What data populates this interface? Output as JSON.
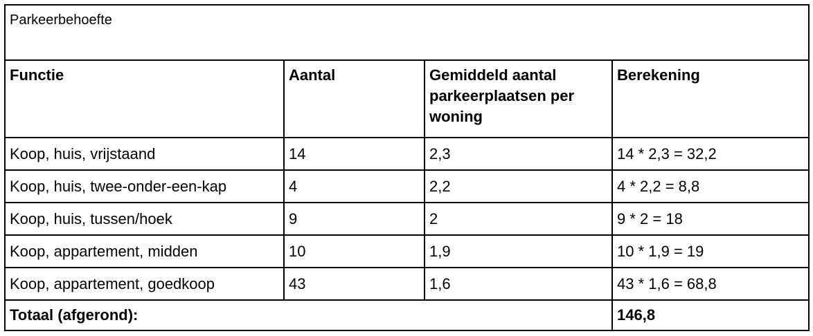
{
  "table": {
    "title": "Parkeerbehoefte",
    "headers": [
      "Functie",
      "Aantal",
      "Gemiddeld aantal parkeerplaatsen per woning",
      "Berekening"
    ],
    "rows": [
      [
        "Koop, huis, vrijstaand",
        "14",
        "2,3",
        "14 * 2,3 = 32,2"
      ],
      [
        "Koop, huis, twee-onder-een-kap",
        "4",
        "2,2",
        "4 * 2,2 = 8,8"
      ],
      [
        "Koop, huis, tussen/hoek",
        "9",
        "2",
        "9 * 2 = 18"
      ],
      [
        "Koop, appartement, midden",
        "10",
        "1,9",
        "10 * 1,9 = 19"
      ],
      [
        "Koop, appartement, goedkoop",
        "43",
        "1,6",
        "43 * 1,6 = 68,8"
      ]
    ],
    "total": {
      "label": "Totaal (afgerond):",
      "value": "146,8"
    }
  }
}
